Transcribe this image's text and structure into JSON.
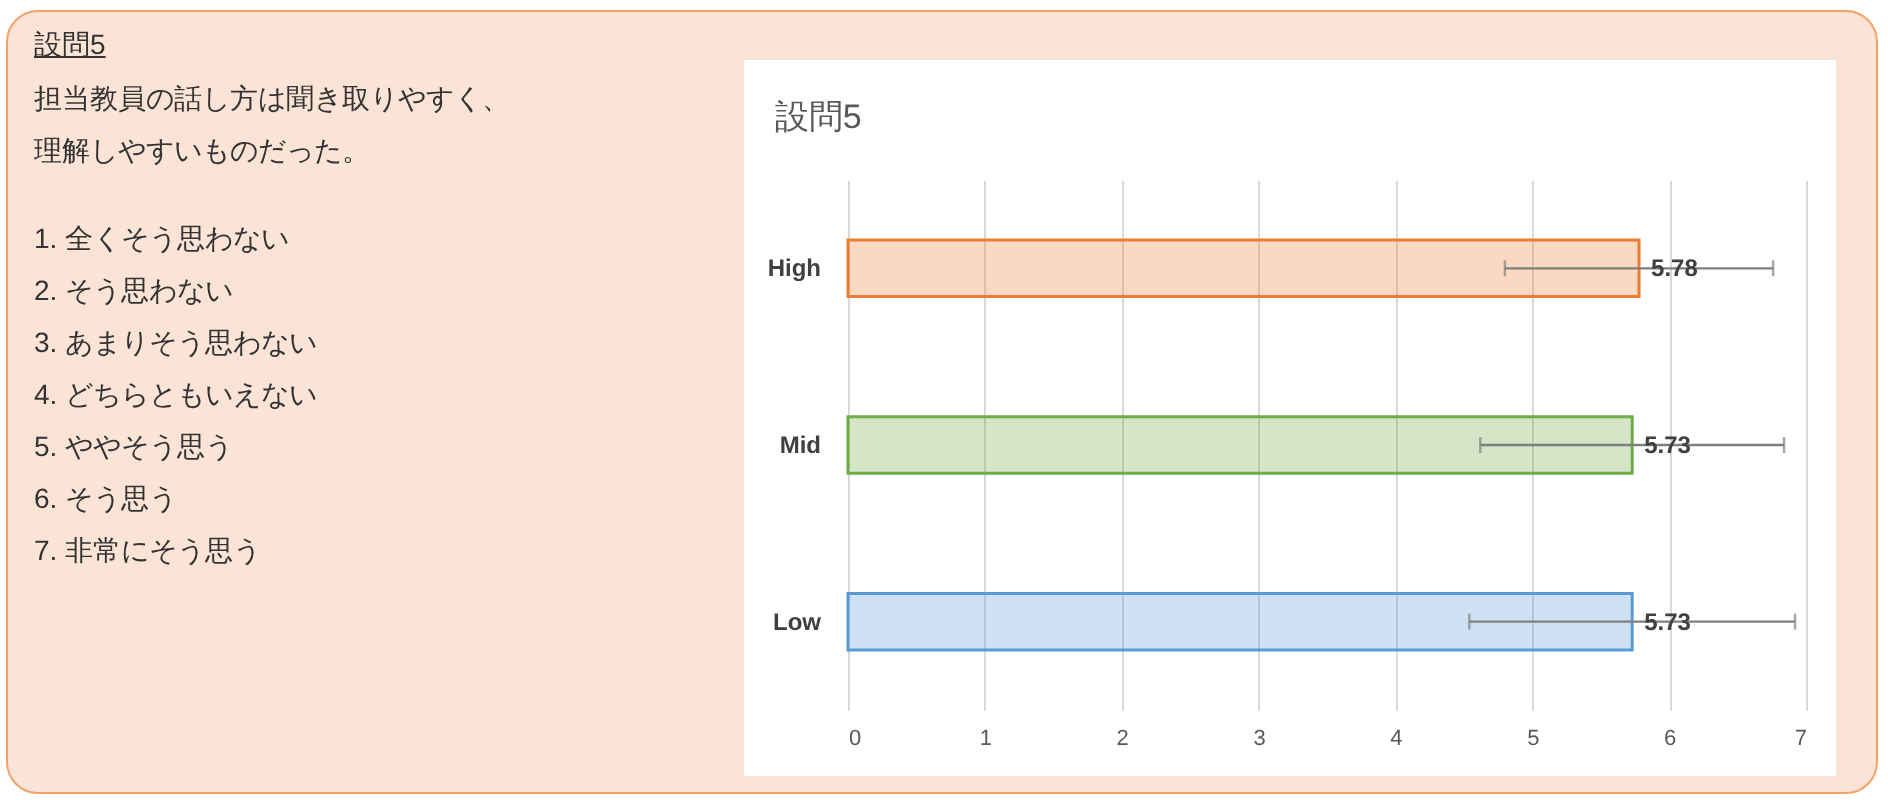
{
  "chart_data": [
    {
      "type": "other",
      "title": "設問5",
      "subtitle": "担当教員の話し方は聞き取りやすく、理解しやすいものだった。",
      "annotations": [
        "1. 全くそう思わない",
        "2. そう思わない",
        "3. あまりそう思わない",
        "4. どちらともいえない",
        "5. ややそう思う",
        "6. そう思う",
        "7. 非常にそう思う"
      ]
    },
    {
      "type": "bar",
      "orientation": "horizontal",
      "title": "設問5",
      "categories": [
        "High",
        "Mid",
        "Low"
      ],
      "values": [
        5.78,
        5.73,
        5.73
      ],
      "colors": [
        "#ed7d31",
        "#70ad47",
        "#5b9bd5"
      ],
      "errors": [
        0.98,
        1.11,
        1.19
      ],
      "xlim": [
        0,
        7
      ],
      "xticks": [
        0,
        1,
        2,
        3,
        4,
        5,
        6,
        7
      ],
      "grid": "x",
      "data_labels": true
    }
  ]
}
